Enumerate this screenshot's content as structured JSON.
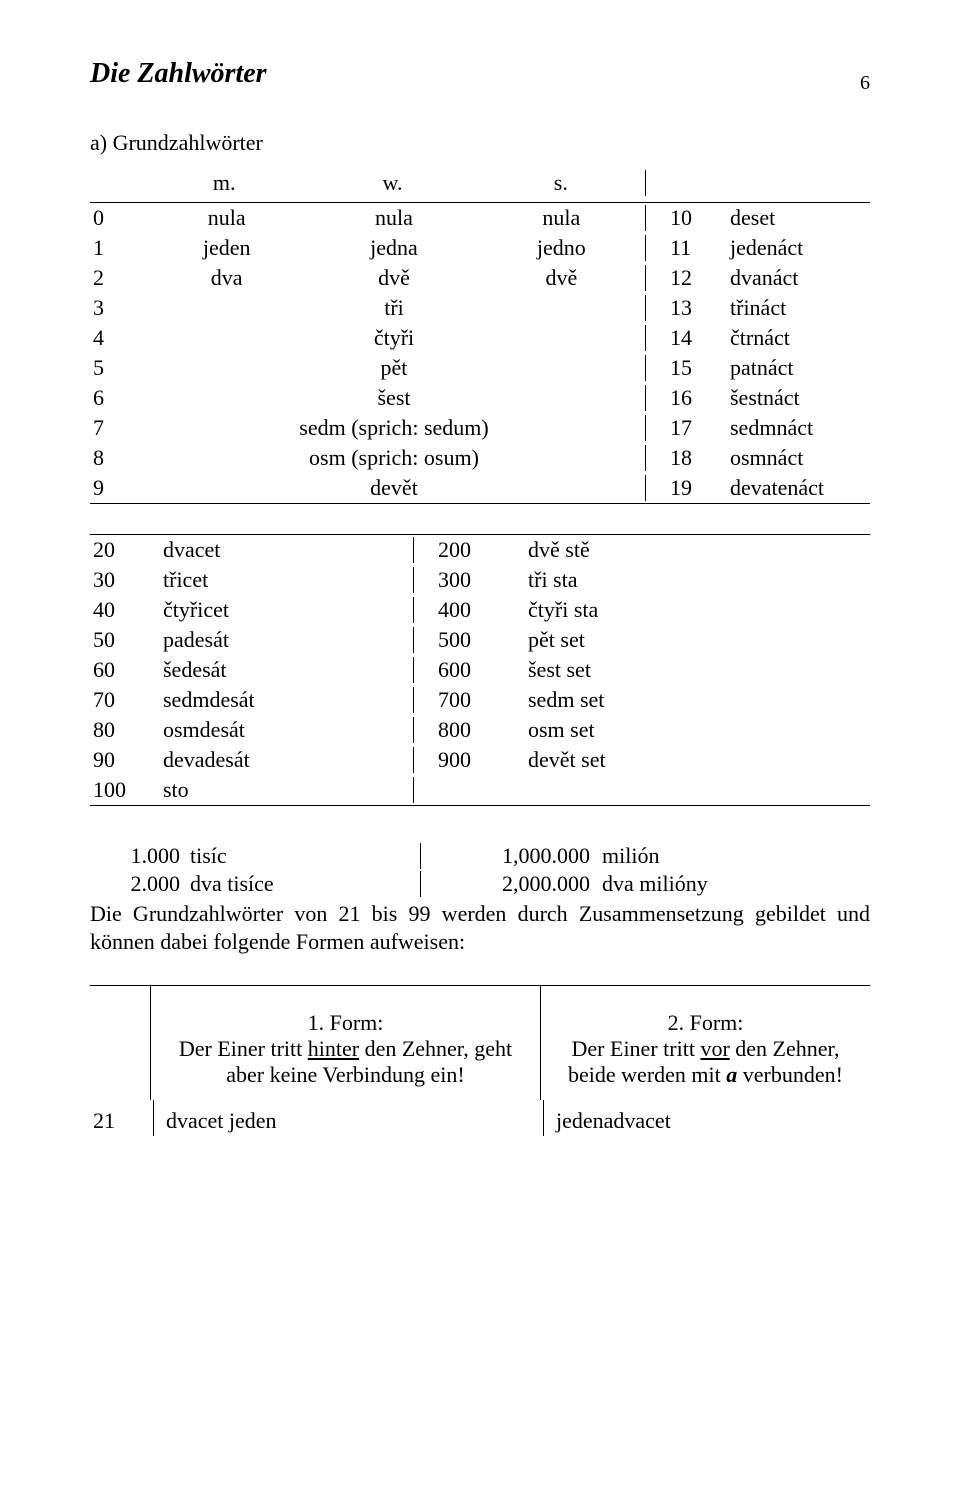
{
  "page_number": "6",
  "title": "Die Zahlwörter",
  "subhead": "a) Grundzahlwörter",
  "gender_headers": {
    "m": "m.",
    "w": "w.",
    "s": "s."
  },
  "table1": [
    {
      "n": "0",
      "cells": [
        "nula",
        "nula",
        "nula"
      ],
      "r1": "10",
      "r2": "deset"
    },
    {
      "n": "1",
      "cells": [
        "jeden",
        "jedna",
        "jedno"
      ],
      "r1": "11",
      "r2": "jedenáct"
    },
    {
      "n": "2",
      "cells": [
        "dva",
        "dvě",
        "dvě"
      ],
      "r1": "12",
      "r2": "dvanáct"
    },
    {
      "n": "3",
      "center": "tři",
      "r1": "13",
      "r2": "třináct"
    },
    {
      "n": "4",
      "center": "čtyři",
      "r1": "14",
      "r2": "čtrnáct"
    },
    {
      "n": "5",
      "center": "pět",
      "r1": "15",
      "r2": "patnáct"
    },
    {
      "n": "6",
      "center": "šest",
      "r1": "16",
      "r2": "šestnáct"
    },
    {
      "n": "7",
      "center": "sedm  (sprich: sedum)",
      "r1": "17",
      "r2": "sedmnáct"
    },
    {
      "n": "8",
      "center": "osm  (sprich: osum)",
      "r1": "18",
      "r2": "osmnáct"
    },
    {
      "n": "9",
      "center": "devět",
      "r1": "19",
      "r2": "devatenáct"
    }
  ],
  "table2": [
    {
      "a": "20",
      "b": "dvacet",
      "c": "200",
      "d": "dvě stě"
    },
    {
      "a": "30",
      "b": "třicet",
      "c": "300",
      "d": "tři sta"
    },
    {
      "a": "40",
      "b": "čtyřicet",
      "c": "400",
      "d": "čtyři sta"
    },
    {
      "a": "50",
      "b": "padesát",
      "c": "500",
      "d": "pět set"
    },
    {
      "a": "60",
      "b": "šedesát",
      "c": "600",
      "d": "šest set"
    },
    {
      "a": "70",
      "b": "sedmdesát",
      "c": "700",
      "d": "sedm set"
    },
    {
      "a": "80",
      "b": "osmdesát",
      "c": "800",
      "d": "osm set"
    },
    {
      "a": "90",
      "b": "devadesát",
      "c": "900",
      "d": "devět set"
    },
    {
      "a": "100",
      "b": "sto",
      "c": "",
      "d": ""
    }
  ],
  "table3": [
    {
      "a": "1.000",
      "b": "tisíc",
      "c": "1,000.000",
      "d": "milión"
    },
    {
      "a": "2.000",
      "b": "dva tisíce",
      "c": "2,000.000",
      "d": "dva milióny"
    }
  ],
  "para": "Die Grundzahlwörter von 21 bis 99 werden durch Zusammensetzung gebildet und können dabei folgende Formen aufweisen:",
  "forms": {
    "form1_label": "1. Form:",
    "form1_a": "Der Einer tritt ",
    "form1_ul": "hinter",
    "form1_b": " den Zehner, geht aber keine Verbindung ein!",
    "form2_label": "2. Form:",
    "form2_a": "Der Einer tritt ",
    "form2_ul": "vor",
    "form2_b": " den Zehner, beide werden mit  ",
    "form2_bi": "a",
    "form2_c": "  verbunden!"
  },
  "example": {
    "num": "21",
    "left": "dvacet jeden",
    "right": "jedenadvacet"
  }
}
